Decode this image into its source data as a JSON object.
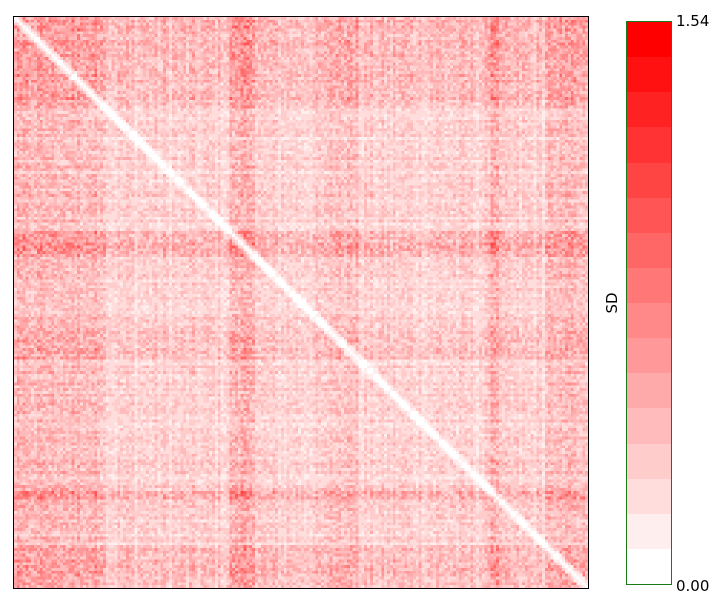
{
  "chart_data": {
    "type": "heatmap",
    "title": "",
    "xlabel": "",
    "ylabel": "",
    "grid": false,
    "matrix_size": 200,
    "symmetric": true,
    "diagonal_value": 0.0,
    "color_scale": {
      "label": "SD",
      "min": 0.0,
      "max": 1.54,
      "min_label": "0.00",
      "max_label": "1.54",
      "steps": 16,
      "min_color": "#ffffff",
      "max_color": "#ff0000",
      "placement": "right"
    },
    "hotspot_bands": [
      {
        "range": [
          75,
          84
        ],
        "mean": 0.75
      },
      {
        "range": [
          0,
          32
        ],
        "mean": 0.6
      },
      {
        "range": [
          185,
          200
        ],
        "mean": 0.55
      },
      {
        "range": [
          166,
          169
        ],
        "mean": 0.85
      },
      {
        "range": [
          110,
          120
        ],
        "mean": 0.5
      }
    ],
    "baseline_mean": 0.3
  }
}
